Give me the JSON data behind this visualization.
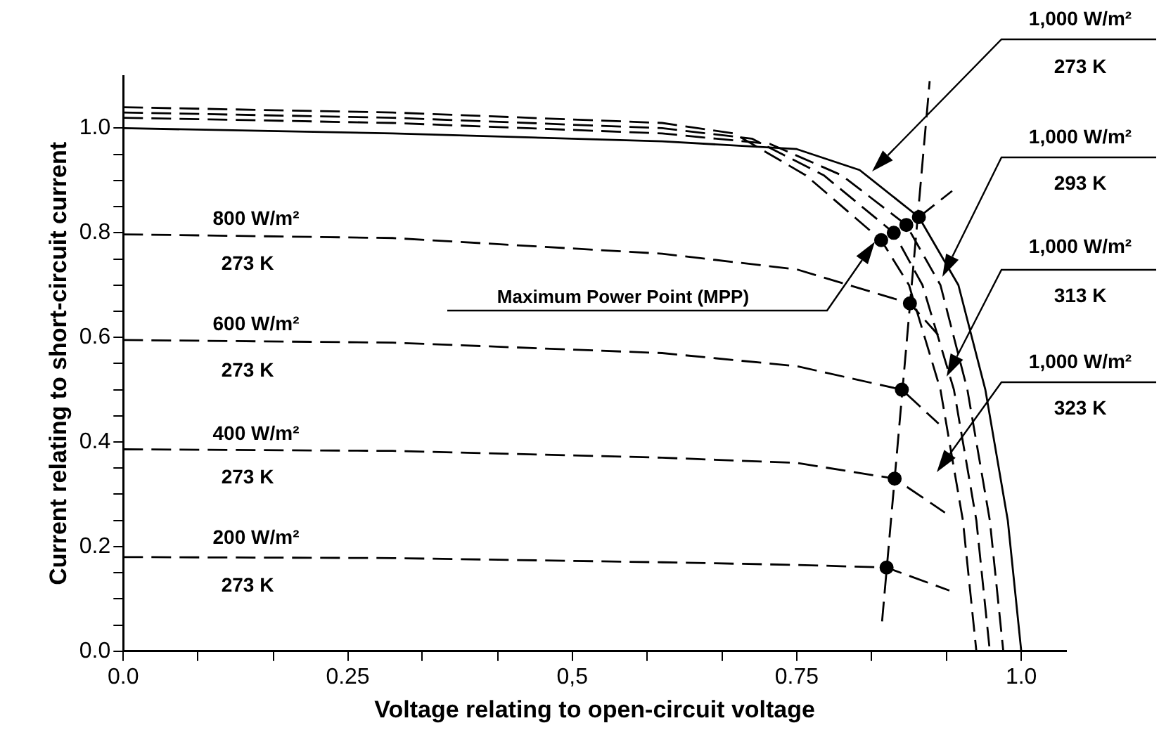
{
  "chart_data": {
    "type": "line",
    "xlabel": "Voltage relating to open-circuit voltage",
    "ylabel": "Current relating to short-circuit current",
    "xlim": [
      0,
      1.05
    ],
    "ylim": [
      0,
      1.1
    ],
    "xticks": [
      {
        "value": 0,
        "label": "0.0"
      },
      {
        "value": 0.083,
        "label": null
      },
      {
        "value": 0.167,
        "label": null
      },
      0.25,
      {
        "value": 0.333,
        "label": null
      },
      {
        "value": 0.417,
        "label": null
      },
      {
        "value": 0.5,
        "label": "0,5"
      },
      {
        "value": 0.583,
        "label": null
      },
      {
        "value": 0.667,
        "label": null
      },
      0.75,
      {
        "value": 0.833,
        "label": null
      },
      {
        "value": 0.917,
        "label": null
      },
      {
        "value": 1,
        "label": "1.0"
      }
    ],
    "yticks": [
      {
        "value": 0,
        "label": "0.0"
      },
      {
        "value": 0.05,
        "label": null
      },
      {
        "value": 0.1,
        "label": null
      },
      {
        "value": 0.15,
        "label": null
      },
      0.2,
      {
        "value": 0.25,
        "label": null
      },
      {
        "value": 0.3,
        "label": null
      },
      {
        "value": 0.35,
        "label": null
      },
      0.4,
      {
        "value": 0.45,
        "label": null
      },
      {
        "value": 0.5,
        "label": null
      },
      {
        "value": 0.55,
        "label": null
      },
      0.6,
      {
        "value": 0.65,
        "label": null
      },
      {
        "value": 0.7,
        "label": null
      },
      {
        "value": 0.75,
        "label": null
      },
      0.8,
      {
        "value": 0.85,
        "label": null
      },
      {
        "value": 0.9,
        "label": null
      },
      {
        "value": 0.95,
        "label": null
      },
      {
        "value": 1,
        "label": "1.0"
      }
    ],
    "grid": false,
    "legend": false,
    "annotations": [
      "800 W/m²",
      "273 K",
      "600 W/m²",
      "273 K",
      "400 W/m²",
      "273 K",
      "200 W/m²",
      "273 K",
      "1,000 W/m²",
      "273 K",
      "1,000 W/m²",
      "293 K",
      "1,000 W/m²",
      "313 K",
      "1,000 W/m²",
      "323 K",
      "Maximum Power Point (MPP)"
    ],
    "series": [
      {
        "color": "#000000",
        "line_style": "solid",
        "x": [
          0,
          0.3,
          0.6,
          0.75,
          0.82,
          0.886,
          0.93,
          0.96,
          0.985,
          1.0
        ],
        "values": [
          1.0,
          0.99,
          0.975,
          0.96,
          0.92,
          0.83,
          0.7,
          0.5,
          0.25,
          0
        ]
      },
      {
        "type": "line",
        "color": "#000000",
        "line_style": "dashed",
        "x": [
          0,
          0.3,
          0.6,
          0.72,
          0.8,
          0.872,
          0.91,
          0.94,
          0.965,
          0.98
        ],
        "values": [
          1.02,
          1.01,
          0.99,
          0.97,
          0.91,
          0.815,
          0.7,
          0.5,
          0.25,
          0
        ]
      },
      {
        "type": "line",
        "color": "#000000",
        "line_style": "dashed",
        "x": [
          0,
          0.3,
          0.6,
          0.7,
          0.78,
          0.858,
          0.89,
          0.925,
          0.95,
          0.965
        ],
        "values": [
          1.03,
          1.02,
          1.0,
          0.98,
          0.91,
          0.8,
          0.7,
          0.5,
          0.25,
          0
        ]
      },
      {
        "type": "line",
        "color": "#000000",
        "line_style": "dashed",
        "x": [
          0,
          0.3,
          0.6,
          0.68,
          0.76,
          0.844,
          0.875,
          0.91,
          0.935,
          0.95
        ],
        "values": [
          1.04,
          1.03,
          1.01,
          0.99,
          0.91,
          0.786,
          0.7,
          0.5,
          0.25,
          0
        ]
      },
      {
        "type": "line",
        "color": "#000000",
        "line_style": "dashed",
        "x": [
          0,
          0.3,
          0.6,
          0.75,
          0.876,
          0.91
        ],
        "values": [
          0.797,
          0.79,
          0.76,
          0.73,
          0.665,
          0.6
        ]
      },
      {
        "type": "line",
        "color": "#000000",
        "line_style": "dashed",
        "x": [
          0,
          0.3,
          0.6,
          0.75,
          0.867,
          0.908
        ],
        "values": [
          0.595,
          0.59,
          0.57,
          0.545,
          0.5,
          0.435
        ]
      },
      {
        "type": "line",
        "color": "#000000",
        "line_style": "dashed",
        "x": [
          0,
          0.3,
          0.6,
          0.75,
          0.859,
          0.915
        ],
        "values": [
          0.386,
          0.383,
          0.37,
          0.36,
          0.33,
          0.265
        ]
      },
      {
        "type": "line",
        "color": "#000000",
        "line_style": "dashed",
        "x": [
          0,
          0.3,
          0.6,
          0.75,
          0.85,
          0.92
        ],
        "values": [
          0.18,
          0.178,
          0.17,
          0.165,
          0.16,
          0.116
        ]
      },
      {
        "type": "line",
        "color": "#000000",
        "line_style": "dashed",
        "x": [
          0.845,
          0.898
        ],
        "values": [
          0.057,
          1.09
        ]
      },
      {
        "type": "line",
        "color": "#000000",
        "line_style": "dashed",
        "x": [
          0.886,
          0.923
        ],
        "values": [
          0.83,
          0.88
        ]
      },
      {
        "type": "scatter",
        "color": "#000000",
        "marker": "circle",
        "x": [
          0.886,
          0.872,
          0.858,
          0.844,
          0.876,
          0.867,
          0.859,
          0.85
        ],
        "values": [
          0.83,
          0.815,
          0.8,
          0.786,
          0.665,
          0.5,
          0.33,
          0.16
        ]
      }
    ]
  }
}
